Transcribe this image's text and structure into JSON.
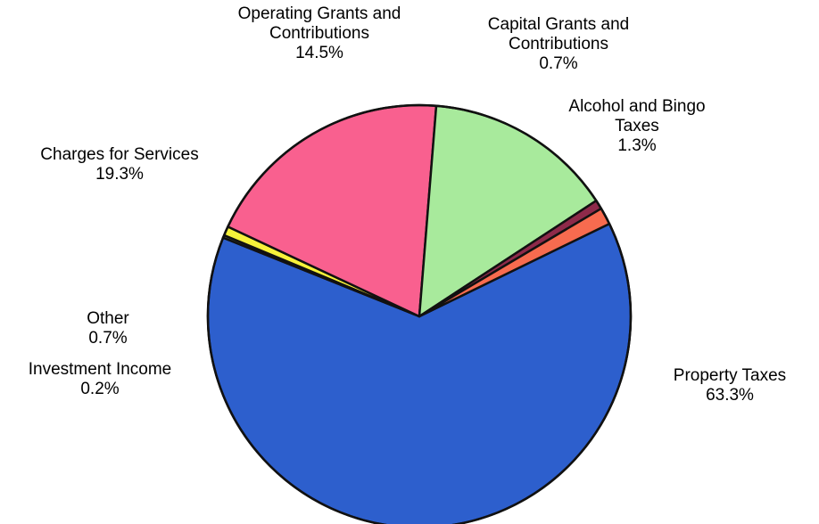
{
  "chart_data": {
    "type": "pie",
    "title": "",
    "slices": [
      {
        "label": [
          "Property Taxes"
        ],
        "value": 63.3,
        "percent_label": "63.3%",
        "color": "#2d5fcd"
      },
      {
        "label": [
          "Investment Income"
        ],
        "value": 0.2,
        "percent_label": "0.2%",
        "color": "#6b7a55"
      },
      {
        "label": [
          "Other"
        ],
        "value": 0.7,
        "percent_label": "0.7%",
        "color": "#f6f23a"
      },
      {
        "label": [
          "Charges for Services"
        ],
        "value": 19.3,
        "percent_label": "19.3%",
        "color": "#f9608f"
      },
      {
        "label": [
          "Operating Grants and",
          "Contributions"
        ],
        "value": 14.5,
        "percent_label": "14.5%",
        "color": "#a8ea9c"
      },
      {
        "label": [
          "Capital Grants and",
          "Contributions"
        ],
        "value": 0.7,
        "percent_label": "0.7%",
        "color": "#8e2a4a"
      },
      {
        "label": [
          "Alcohol and Bingo",
          "Taxes"
        ],
        "value": 1.3,
        "percent_label": "1.3%",
        "color": "#f76b4f"
      }
    ]
  }
}
